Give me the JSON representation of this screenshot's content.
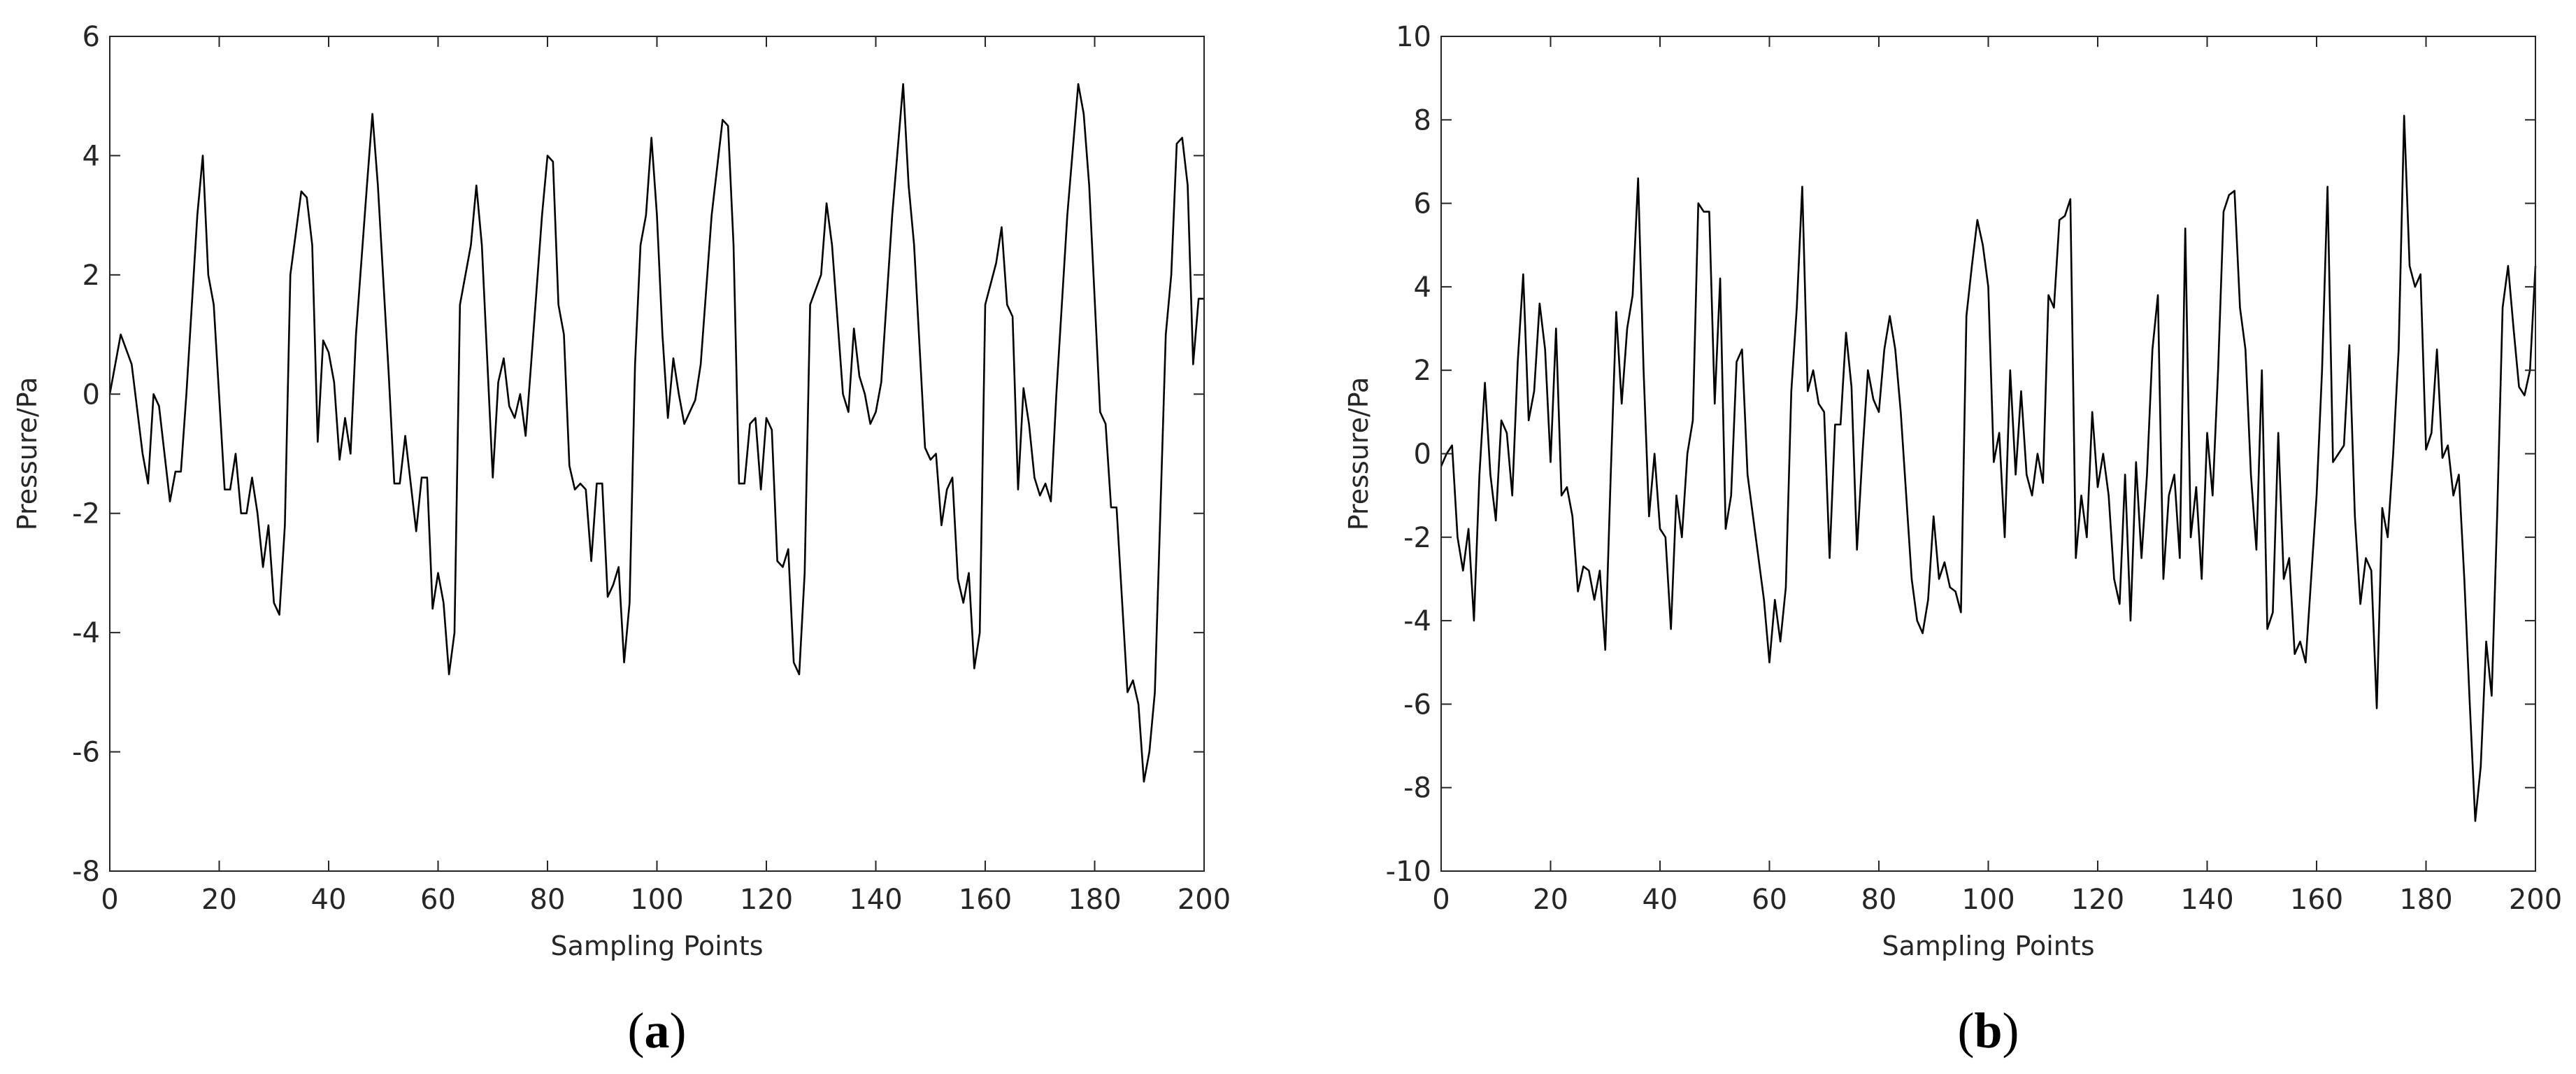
{
  "chart_data": [
    {
      "type": "line",
      "title": "(a)",
      "x_label": "Sampling Points",
      "y_label": "Pressure/Pa",
      "xlim": [
        0,
        200
      ],
      "xticks": [
        0,
        20,
        40,
        60,
        80,
        100,
        120,
        140,
        160,
        180,
        200
      ],
      "ylim": [
        -8,
        6
      ],
      "yticks": [
        -8,
        -6,
        -4,
        -2,
        0,
        2,
        4,
        6
      ],
      "series": [
        {
          "color": "#000000",
          "x": [
            0,
            2,
            4,
            6,
            7,
            8,
            9,
            11,
            12,
            13,
            14,
            16,
            17,
            18,
            19,
            21,
            22,
            23,
            24,
            25,
            26,
            27,
            28,
            29,
            30,
            31,
            32,
            33,
            35,
            36,
            37,
            38,
            39,
            40,
            41,
            42,
            43,
            44,
            45,
            47,
            48,
            49,
            51,
            52,
            53,
            54,
            55,
            56,
            57,
            58,
            59,
            60,
            61,
            62,
            63,
            64,
            66,
            67,
            68,
            70,
            71,
            72,
            73,
            74,
            75,
            76,
            77,
            79,
            80,
            81,
            82,
            83,
            84,
            85,
            86,
            87,
            88,
            89,
            90,
            91,
            92,
            93,
            94,
            95,
            96,
            97,
            98,
            99,
            100,
            101,
            102,
            103,
            104,
            105,
            106,
            107,
            108,
            110,
            112,
            113,
            114,
            115,
            116,
            117,
            118,
            119,
            120,
            121,
            122,
            123,
            124,
            125,
            126,
            127,
            128,
            130,
            131,
            132,
            134,
            135,
            136,
            137,
            138,
            139,
            140,
            141,
            143,
            145,
            146,
            147,
            149,
            150,
            151,
            152,
            153,
            154,
            155,
            156,
            157,
            158,
            159,
            160,
            162,
            163,
            164,
            165,
            166,
            167,
            168,
            169,
            170,
            171,
            172,
            173,
            175,
            177,
            178,
            179,
            181,
            182,
            183,
            184,
            186,
            187,
            188,
            189,
            190,
            191,
            192,
            193,
            194,
            195,
            196,
            197,
            198,
            199,
            200
          ],
          "values": [
            0,
            1.0,
            0.5,
            -1.0,
            -1.5,
            0.0,
            -0.2,
            -1.8,
            -1.3,
            -1.3,
            0,
            3.0,
            4.0,
            2.0,
            1.5,
            -1.6,
            -1.6,
            -1.0,
            -2.0,
            -2.0,
            -1.4,
            -2.0,
            -2.9,
            -2.2,
            -3.5,
            -3.7,
            -2.2,
            2.0,
            3.4,
            3.3,
            2.5,
            -0.8,
            0.9,
            0.7,
            0.2,
            -1.1,
            -0.4,
            -1.0,
            1.0,
            3.5,
            4.7,
            3.5,
            0.3,
            -1.5,
            -1.5,
            -0.7,
            -1.5,
            -2.3,
            -1.4,
            -1.4,
            -3.6,
            -3.0,
            -3.5,
            -4.7,
            -4.0,
            1.5,
            2.5,
            3.5,
            2.5,
            -1.4,
            0.2,
            0.6,
            -0.2,
            -0.4,
            0,
            -0.7,
            0.5,
            3.0,
            4.0,
            3.9,
            1.5,
            1.0,
            -1.2,
            -1.6,
            -1.5,
            -1.6,
            -2.8,
            -1.5,
            -1.5,
            -3.4,
            -3.2,
            -2.9,
            -4.5,
            -3.5,
            0.5,
            2.5,
            3.0,
            4.3,
            3.0,
            1.0,
            -0.4,
            0.6,
            0,
            -0.5,
            -0.3,
            -0.1,
            0.5,
            3.0,
            4.6,
            4.5,
            2.5,
            -1.5,
            -1.5,
            -0.5,
            -0.4,
            -1.6,
            -0.4,
            -0.6,
            -2.8,
            -2.9,
            -2.6,
            -4.5,
            -4.7,
            -3.0,
            1.5,
            2.0,
            3.2,
            2.5,
            0,
            -0.3,
            1.1,
            0.3,
            0,
            -0.5,
            -0.3,
            0.2,
            3.0,
            5.2,
            3.5,
            2.5,
            -0.9,
            -1.1,
            -1.0,
            -2.2,
            -1.6,
            -1.4,
            -3.1,
            -3.5,
            -3.0,
            -4.6,
            -4.0,
            1.5,
            2.2,
            2.8,
            1.5,
            1.3,
            -1.6,
            0.1,
            -0.5,
            -1.4,
            -1.7,
            -1.5,
            -1.8,
            0,
            3.0,
            5.2,
            4.7,
            3.5,
            -0.3,
            -0.5,
            -1.9,
            -1.9,
            -5.0,
            -4.8,
            -5.2,
            -6.5,
            -6.0,
            -5.0,
            -2.0,
            1.0,
            2.0,
            4.2,
            4.3,
            3.5,
            0.5,
            1.6,
            1.6
          ]
        }
      ]
    },
    {
      "type": "line",
      "title": "(b)",
      "x_label": "Sampling Points",
      "y_label": "Pressure/Pa",
      "xlim": [
        0,
        200
      ],
      "xticks": [
        0,
        20,
        40,
        60,
        80,
        100,
        120,
        140,
        160,
        180,
        200
      ],
      "ylim": [
        -10,
        10
      ],
      "yticks": [
        -10,
        -8,
        -6,
        -4,
        -2,
        0,
        2,
        4,
        6,
        8,
        10
      ],
      "series": [
        {
          "color": "#000000",
          "x": [
            0,
            1,
            2,
            3,
            4,
            5,
            6,
            7,
            8,
            9,
            10,
            11,
            12,
            13,
            14,
            15,
            16,
            17,
            18,
            19,
            20,
            21,
            22,
            23,
            24,
            25,
            26,
            27,
            28,
            29,
            30,
            31,
            32,
            33,
            34,
            35,
            36,
            37,
            38,
            39,
            40,
            41,
            42,
            43,
            44,
            45,
            46,
            47,
            48,
            49,
            50,
            51,
            52,
            53,
            54,
            55,
            56,
            57,
            58,
            59,
            60,
            61,
            62,
            63,
            64,
            65,
            66,
            67,
            68,
            69,
            70,
            71,
            72,
            73,
            74,
            75,
            76,
            77,
            78,
            79,
            80,
            81,
            82,
            83,
            84,
            85,
            86,
            87,
            88,
            89,
            90,
            91,
            92,
            93,
            94,
            95,
            96,
            97,
            98,
            99,
            100,
            101,
            102,
            103,
            104,
            105,
            106,
            107,
            108,
            109,
            110,
            111,
            112,
            113,
            114,
            115,
            116,
            117,
            118,
            119,
            120,
            121,
            122,
            123,
            124,
            125,
            126,
            127,
            128,
            129,
            130,
            131,
            132,
            133,
            134,
            135,
            136,
            137,
            138,
            139,
            140,
            141,
            142,
            143,
            144,
            145,
            146,
            147,
            148,
            149,
            150,
            151,
            152,
            153,
            154,
            155,
            156,
            157,
            158,
            159,
            160,
            161,
            162,
            163,
            164,
            165,
            166,
            167,
            168,
            169,
            170,
            171,
            172,
            173,
            174,
            175,
            176,
            177,
            178,
            179,
            180,
            181,
            182,
            183,
            184,
            185,
            186,
            187,
            188,
            189,
            190,
            191,
            192,
            193,
            194,
            195,
            196,
            197,
            198,
            199,
            200
          ],
          "values": [
            -0.3,
            0,
            0.2,
            -2.0,
            -2.8,
            -1.8,
            -4.0,
            -0.5,
            1.7,
            -0.5,
            -1.6,
            0.8,
            0.5,
            -1.0,
            2.2,
            4.3,
            0.8,
            1.5,
            3.6,
            2.5,
            -0.2,
            3.0,
            -1.0,
            -0.8,
            -1.5,
            -3.3,
            -2.7,
            -2.8,
            -3.5,
            -2.8,
            -4.7,
            -0.5,
            3.4,
            1.2,
            3.0,
            3.8,
            6.6,
            2.0,
            -1.5,
            0,
            -1.8,
            -2.0,
            -4.2,
            -1.0,
            -2.0,
            0,
            0.8,
            6.0,
            5.8,
            5.8,
            1.2,
            4.2,
            -1.8,
            -1.0,
            2.2,
            2.5,
            -0.5,
            -1.5,
            -2.5,
            -3.5,
            -5.0,
            -3.5,
            -4.5,
            -3.2,
            1.5,
            3.5,
            6.4,
            1.5,
            2.0,
            1.2,
            1.0,
            -2.5,
            0.7,
            0.7,
            2.9,
            1.6,
            -2.3,
            0.0,
            2.0,
            1.3,
            1.0,
            2.5,
            3.3,
            2.5,
            1.0,
            -1.0,
            -3.0,
            -4.0,
            -4.3,
            -3.5,
            -1.5,
            -3.0,
            -2.6,
            -3.2,
            -3.3,
            -3.8,
            3.3,
            4.5,
            5.6,
            5.0,
            4.0,
            -0.2,
            0.5,
            -2.0,
            2.0,
            -0.5,
            1.5,
            -0.5,
            -1.0,
            0,
            -0.7,
            3.8,
            3.5,
            5.6,
            5.7,
            6.1,
            -2.5,
            -1.0,
            -2.0,
            1.0,
            -0.8,
            0,
            -1.0,
            -3.0,
            -3.6,
            -0.5,
            -4.0,
            -0.2,
            -2.5,
            -0.5,
            2.5,
            3.8,
            -3.0,
            -1.0,
            -0.5,
            -2.5,
            5.4,
            -2.0,
            -0.8,
            -3.0,
            0.5,
            -1.0,
            2.0,
            5.8,
            6.2,
            6.3,
            3.5,
            2.5,
            -0.5,
            -2.3,
            2.0,
            -4.2,
            -3.8,
            0.5,
            -3.0,
            -2.5,
            -4.8,
            -4.5,
            -5.0,
            -3.0,
            -1.0,
            2.0,
            6.4,
            -0.2,
            0,
            0.2,
            2.6,
            -1.5,
            -3.6,
            -2.5,
            -2.8,
            -6.1,
            -1.3,
            -2.0,
            0,
            2.5,
            8.1,
            4.5,
            4.0,
            4.3,
            0.1,
            0.5,
            2.5,
            -0.1,
            0.2,
            -1.0,
            -0.5,
            -3.0,
            -6.0,
            -8.8,
            -7.5,
            -4.5,
            -5.8,
            -1.5,
            3.5,
            4.5,
            3.0,
            1.6,
            1.4,
            2.0,
            4.5
          ]
        }
      ]
    }
  ]
}
